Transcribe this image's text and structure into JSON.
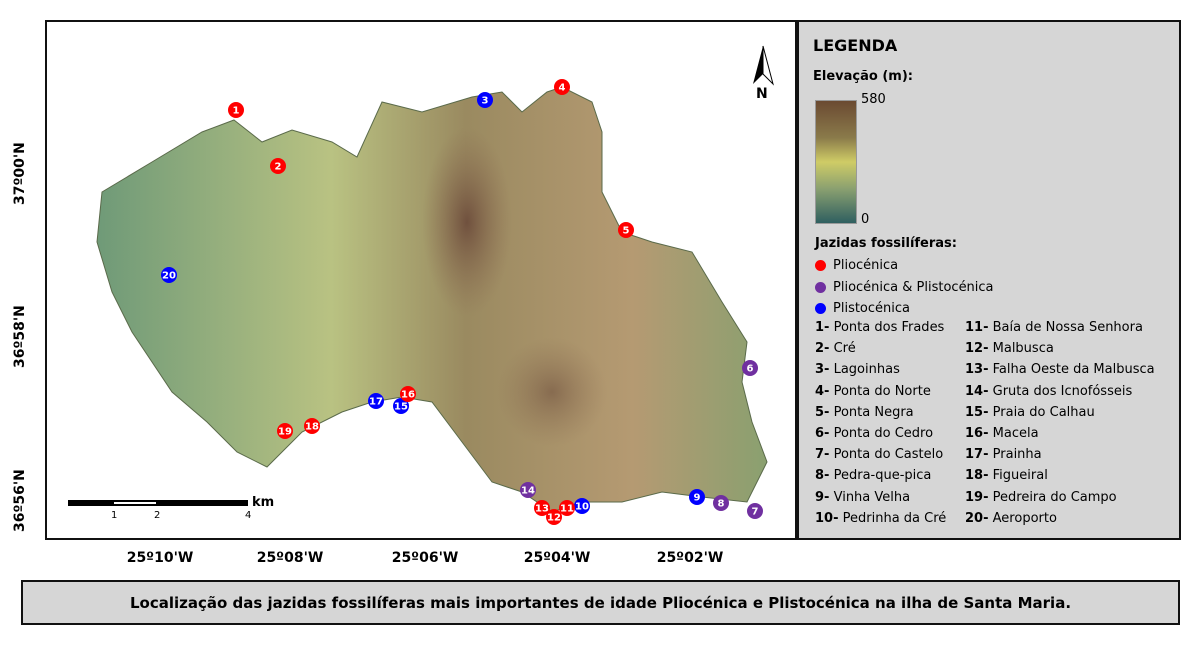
{
  "map": {
    "lat_labels": [
      "37º00'N",
      "36º58'N",
      "36º56'N"
    ],
    "lon_labels": [
      "25º10'W",
      "25º08'W",
      "25º06'W",
      "25º04'W",
      "25º02'W"
    ],
    "north_label": "N",
    "scale": {
      "ticks": [
        "1",
        "2",
        "4"
      ],
      "unit": "km"
    },
    "markers": [
      {
        "n": "1",
        "type": "Pliocénica"
      },
      {
        "n": "2",
        "type": "Pliocénica"
      },
      {
        "n": "3",
        "type": "Plistocénica"
      },
      {
        "n": "4",
        "type": "Pliocénica"
      },
      {
        "n": "5",
        "type": "Pliocénica"
      },
      {
        "n": "6",
        "type": "Pliocénica & Plistocénica"
      },
      {
        "n": "7",
        "type": "Pliocénica & Plistocénica"
      },
      {
        "n": "8",
        "type": "Pliocénica & Plistocénica"
      },
      {
        "n": "9",
        "type": "Plistocénica"
      },
      {
        "n": "10",
        "type": "Plistocénica"
      },
      {
        "n": "11",
        "type": "Pliocénica"
      },
      {
        "n": "12",
        "type": "Pliocénica"
      },
      {
        "n": "13",
        "type": "Pliocénica"
      },
      {
        "n": "14",
        "type": "Pliocénica & Plistocénica"
      },
      {
        "n": "15",
        "type": "Plistocénica"
      },
      {
        "n": "16",
        "type": "Pliocénica"
      },
      {
        "n": "17",
        "type": "Plistocénica"
      },
      {
        "n": "18",
        "type": "Pliocénica"
      },
      {
        "n": "19",
        "type": "Pliocénica"
      },
      {
        "n": "20",
        "type": "Plistocénica"
      }
    ]
  },
  "legend": {
    "title": "LEGENDA",
    "elevation_title": "Elevação (m):",
    "elev_max": "580",
    "elev_min": "0",
    "sites_title": "Jazidas fossilíferas:",
    "categories": [
      {
        "label": "Pliocénica",
        "color": "#ff0000"
      },
      {
        "label": "Pliocénica & Plistocénica",
        "color": "#7030a0"
      },
      {
        "label": "Plistocénica",
        "color": "#0000ff"
      }
    ],
    "sites": [
      [
        "1-",
        "Ponta dos Frades"
      ],
      [
        "11-",
        "Baía de Nossa Senhora"
      ],
      [
        "2-",
        "Cré"
      ],
      [
        "12-",
        "Malbusca"
      ],
      [
        "3-",
        "Lagoinhas"
      ],
      [
        "13-",
        "Falha Oeste da Malbusca"
      ],
      [
        "4-",
        "Ponta do Norte"
      ],
      [
        "14-",
        "Gruta dos Icnofósseis"
      ],
      [
        "5-",
        "Ponta Negra"
      ],
      [
        "15-",
        "Praia do Calhau"
      ],
      [
        "6-",
        "Ponta do Cedro"
      ],
      [
        "16-",
        "Macela"
      ],
      [
        "7-",
        "Ponta do Castelo"
      ],
      [
        "17-",
        "Prainha"
      ],
      [
        "8-",
        "Pedra-que-pica"
      ],
      [
        "18-",
        "Figueiral"
      ],
      [
        "9-",
        "Vinha Velha"
      ],
      [
        "19-",
        "Pedreira do Campo"
      ],
      [
        "10-",
        "Pedrinha da Cré"
      ],
      [
        "20-",
        "Aeroporto"
      ]
    ]
  },
  "caption": "Localização das jazidas fossilíferas mais importantes de idade Pliocénica e Plistocénica na ilha de Santa Maria."
}
